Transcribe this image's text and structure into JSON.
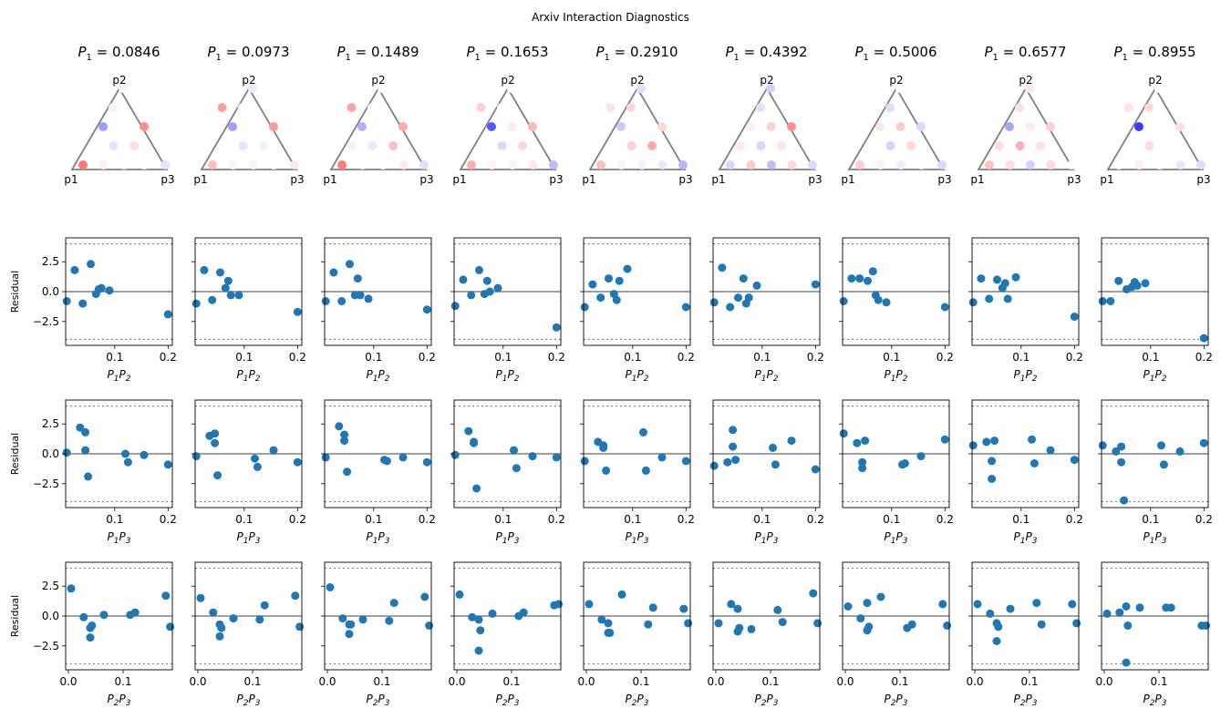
{
  "chart_data": {
    "type": "scatter",
    "title": "Arxiv Interaction Diagnostics",
    "panel_title_prefix": "P",
    "panel_title_sub": "1",
    "p1_values": [
      "0.0846",
      "0.0973",
      "0.1489",
      "0.1653",
      "0.2910",
      "0.4392",
      "0.5006",
      "0.6577",
      "0.8955"
    ],
    "simplex": {
      "corners": [
        "p1",
        "p2",
        "p3"
      ],
      "points": [
        [
          0,
          0
        ],
        [
          1,
          0
        ],
        [
          2,
          0
        ],
        [
          3,
          0
        ],
        [
          4,
          0
        ],
        [
          1,
          1
        ],
        [
          2,
          1
        ],
        [
          3,
          1
        ],
        [
          2,
          2
        ],
        [
          3,
          2
        ],
        [
          4,
          2
        ],
        [
          2,
          3
        ],
        [
          3,
          3
        ],
        [
          4,
          4
        ]
      ],
      "colors": [
        [
          "#f77",
          "#ffeeee",
          "#ffffff",
          "#ffffff",
          "#e3e3ff",
          "#ffffff",
          "#e3e3ff",
          "#ffdede",
          "#9e9eff",
          "#ffffff",
          "#ff8c8c",
          "#ffffff",
          "#fff1f1",
          "#f5f5ff"
        ],
        [
          "#ffbcbc",
          "#fff3f3",
          "#f5f5ff",
          "#ffffff",
          "#ffeaea",
          "#ffffff",
          "#e6e6ff",
          "#f1f1ff",
          "#a0a0ff",
          "#ffffff",
          "#ff9a9a",
          "#ff9f9f",
          "#ffffff",
          "#ebebff"
        ],
        [
          "#ff7d7d",
          "#ffffff",
          "#ffffff",
          "#ffeaea",
          "#dfdfff",
          "#ffeeee",
          "#e8e8ff",
          "#ffbfbf",
          "#b0b0ff",
          "#ffffff",
          "#ffabab",
          "#ffa3a3",
          "#ffffff",
          "#ffffff"
        ],
        [
          "#ffafaf",
          "#fff2f2",
          "#f5f5ff",
          "#ffe9e9",
          "#bdbdff",
          "#ffffff",
          "#dadaff",
          "#ffd4d4",
          "#5858ff",
          "#ffeded",
          "#ffb8b8",
          "#ffd0d0",
          "#ffffff",
          "#ffffff"
        ],
        [
          "#ffbfbf",
          "#f5f5ff",
          "#f1f1ff",
          "#ebebff",
          "#b8b8ff",
          "#ffffff",
          "#ffcfcf",
          "#ffa7a7",
          "#c8c8ff",
          "#ffffff",
          "#ffd5d5",
          "#ffe2e2",
          "#ffd9d9",
          "#dedeff"
        ],
        [
          "#d6d6ff",
          "#ffcaca",
          "#bfbfff",
          "#ffd8d8",
          "#dadaff",
          "#ffe9e9",
          "#d7d7ff",
          "#ffe2e2",
          "#ffeeee",
          "#ffd0d0",
          "#ff8e8e",
          "#ffffff",
          "#e0e0ff",
          "#d0d0ff"
        ],
        [
          "#ffcbcb",
          "#fff4f4",
          "#eeeeff",
          "#ffffff",
          "#d6d6ff",
          "#ffffff",
          "#d3d3ff",
          "#ffd8d8",
          "#ffe6e6",
          "#ffc9c9",
          "#d7d7ff",
          "#ffffff",
          "#dcdcff",
          "#ffffff"
        ],
        [
          "#ffc3c3",
          "#ffdede",
          "#d3d3ff",
          "#ffdada",
          "#ffffff",
          "#ffdcdc",
          "#ffafaf",
          "#ffe0e0",
          "#a6a6ff",
          "#ffebeb",
          "#ffcdcd",
          "#ffffff",
          "#ffe1e1",
          "#ffe6e6"
        ],
        [
          "#ffffff",
          "#ffeeee",
          "#ffffff",
          "#e6e6ff",
          "#dedeff",
          "#ffffff",
          "#ffdcdc",
          "#ffffff",
          "#3b3bff",
          "#ffffff",
          "#ffdede",
          "#ffe2e2",
          "#ffd8d8",
          "#ffffff"
        ]
      ]
    },
    "rows": [
      {
        "xlabel_main": "P",
        "xlabel_sub1": "1",
        "xlabel_mid": "P",
        "xlabel_sub2": "2",
        "xlim": [
          0.008,
          0.208
        ],
        "xticks": [
          "0.1",
          "0.2"
        ],
        "xtick_values": [
          0.1,
          0.2
        ],
        "x": [
          0.01,
          0.025,
          0.04,
          0.055,
          0.065,
          0.07,
          0.075,
          0.09,
          0.2
        ]
      },
      {
        "xlabel_main": "P",
        "xlabel_sub1": "1",
        "xlabel_mid": "P",
        "xlabel_sub2": "3",
        "xlim": [
          0.008,
          0.208
        ],
        "xticks": [
          "0.1",
          "0.2"
        ],
        "xtick_values": [
          0.1,
          0.2
        ],
        "x": [
          0.01,
          0.035,
          0.045,
          0.045,
          0.05,
          0.12,
          0.125,
          0.155,
          0.2
        ]
      },
      {
        "xlabel_main": "P",
        "xlabel_sub1": "2",
        "xlabel_mid": "P",
        "xlabel_sub2": "3",
        "xlim": [
          -0.005,
          0.19
        ],
        "xticks": [
          "0.0",
          "0.1"
        ],
        "xtick_values": [
          0.0,
          0.1
        ],
        "x": [
          0.005,
          0.028,
          0.04,
          0.04,
          0.043,
          0.065,
          0.113,
          0.122,
          0.178,
          0.186
        ]
      }
    ],
    "residuals": [
      [
        [
          -0.8,
          1.8,
          -1.0,
          2.3,
          -0.2,
          0.2,
          0.3,
          0.1,
          -1.9
        ],
        [
          0.1,
          2.2,
          1.8,
          0.3,
          -1.9,
          0.0,
          -0.7,
          -0.1,
          -0.9
        ],
        [
          2.3,
          -0.1,
          -1.8,
          -1.0,
          -0.8,
          0.1,
          0.1,
          0.3,
          1.7,
          -0.9
        ]
      ],
      [
        [
          -1.0,
          1.8,
          -0.7,
          1.6,
          0.3,
          0.9,
          -0.3,
          -0.3,
          -1.7
        ],
        [
          -0.2,
          1.5,
          1.7,
          0.9,
          -1.8,
          -0.4,
          -1.1,
          0.3,
          -0.7
        ],
        [
          1.5,
          0.3,
          -1.7,
          -0.7,
          -1.0,
          -0.2,
          -0.3,
          0.9,
          1.7,
          -0.9
        ]
      ],
      [
        [
          -0.8,
          1.6,
          -0.8,
          2.3,
          -0.3,
          1.1,
          -0.3,
          -0.6,
          -1.5
        ],
        [
          -0.3,
          2.3,
          1.6,
          1.1,
          -1.5,
          -0.5,
          -0.6,
          -0.3,
          -0.7
        ],
        [
          2.4,
          -0.2,
          -1.5,
          -0.7,
          -0.7,
          -0.3,
          -0.4,
          1.1,
          1.6,
          -0.8
        ]
      ],
      [
        [
          -1.2,
          1.0,
          -0.3,
          1.8,
          -0.2,
          0.9,
          0.0,
          0.3,
          -3.0
        ],
        [
          -0.1,
          1.9,
          1.0,
          0.9,
          -2.9,
          0.3,
          -1.2,
          -0.2,
          -0.3
        ],
        [
          1.8,
          -0.1,
          -0.3,
          -2.9,
          -1.2,
          0.2,
          0.0,
          0.3,
          0.9,
          1.0
        ]
      ],
      [
        [
          -1.3,
          0.6,
          -0.5,
          1.1,
          -0.2,
          -0.7,
          0.9,
          1.9,
          -1.3
        ],
        [
          -0.6,
          1.0,
          0.7,
          0.5,
          -1.4,
          1.8,
          -1.4,
          -0.3,
          -0.6
        ],
        [
          1.0,
          -0.3,
          -0.6,
          -1.4,
          -1.4,
          1.8,
          -0.7,
          0.7,
          0.6,
          -0.6
        ]
      ],
      [
        [
          -0.9,
          2.0,
          -1.3,
          -0.5,
          1.1,
          -1.0,
          -0.5,
          0.5,
          0.6
        ],
        [
          -1.0,
          -0.7,
          0.6,
          2.0,
          -0.5,
          0.5,
          -0.9,
          1.1,
          -1.3
        ],
        [
          -0.6,
          1.0,
          0.6,
          -1.3,
          -1.0,
          -1.1,
          0.5,
          -0.5,
          1.9,
          -0.6
        ]
      ],
      [
        [
          -0.8,
          1.1,
          1.1,
          0.9,
          1.7,
          -0.3,
          -0.7,
          -0.9,
          -1.3
        ],
        [
          1.7,
          0.9,
          -0.7,
          -1.2,
          1.1,
          -0.9,
          -0.8,
          -0.2,
          1.2
        ],
        [
          0.8,
          -0.2,
          1.1,
          -1.2,
          -0.9,
          1.6,
          -1.0,
          -0.7,
          1.0,
          -0.8
        ]
      ],
      [
        [
          -0.9,
          1.1,
          -0.6,
          1.0,
          0.3,
          0.7,
          -0.6,
          1.2,
          -2.1
        ],
        [
          0.7,
          1.0,
          -0.6,
          -2.1,
          1.1,
          1.2,
          -0.8,
          0.3,
          -0.5
        ],
        [
          1.0,
          0.2,
          -2.1,
          -0.6,
          -0.9,
          0.6,
          1.1,
          -0.7,
          1.0,
          -0.6
        ]
      ],
      [
        [
          -0.8,
          -0.8,
          0.9,
          0.2,
          0.4,
          0.8,
          0.5,
          0.7,
          -3.9
        ],
        [
          0.7,
          0.2,
          -0.7,
          0.6,
          -3.9,
          0.7,
          -0.9,
          0.2,
          0.9
        ],
        [
          0.2,
          0.3,
          0.8,
          -3.9,
          -0.8,
          0.7,
          0.7,
          0.7,
          -0.8,
          -0.8
        ]
      ]
    ],
    "ylim": [
      -4.5,
      4.5
    ],
    "yticks": [
      "2.5",
      "0.0",
      "−2.5"
    ],
    "ytick_values": [
      2.5,
      0.0,
      -2.5
    ],
    "ylabel": "Residual",
    "threshold_lines": [
      4.0,
      -4.0
    ],
    "marker_color": "#1f77b4",
    "zero_line_color": "#808080"
  }
}
